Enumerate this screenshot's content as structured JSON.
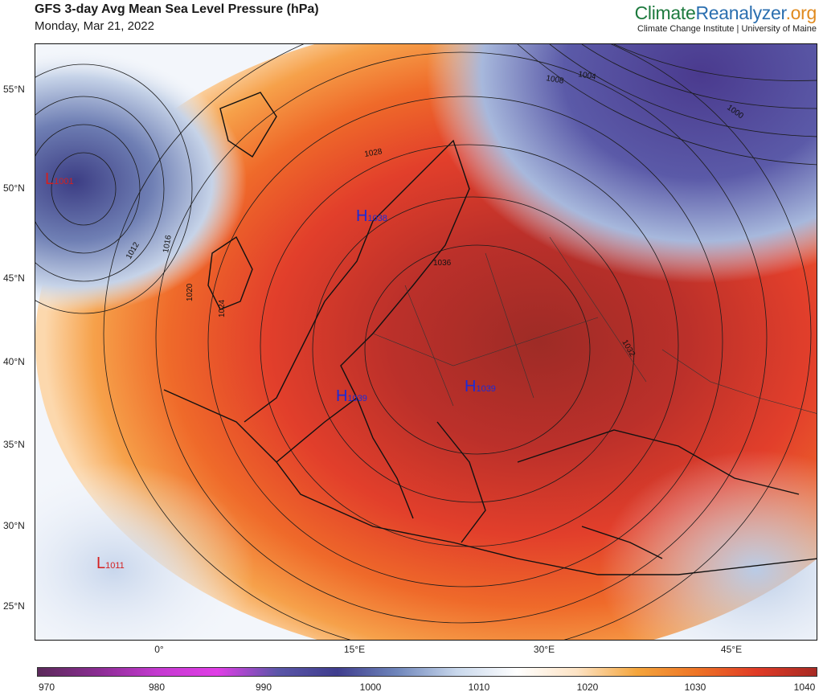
{
  "header": {
    "title": "GFS 3-day Avg Mean Sea Level Pressure (hPa)",
    "date": "Monday, Mar 21, 2022",
    "brand_part1": "Climate",
    "brand_part2": "Reanalyzer",
    "brand_part3": ".org",
    "institution": "Climate Change Institute | University of Maine"
  },
  "axes": {
    "lat_labels": [
      "55°N",
      "50°N",
      "45°N",
      "40°N",
      "35°N",
      "30°N",
      "25°N"
    ],
    "lon_labels": [
      "0°",
      "15°E",
      "30°E",
      "45°E"
    ]
  },
  "pressure_centers": [
    {
      "type": "L",
      "value": "1001",
      "color": "#d42020"
    },
    {
      "type": "H",
      "value": "1038",
      "color": "#1a2bd8"
    },
    {
      "type": "H",
      "value": "1039",
      "color": "#1a2bd8"
    },
    {
      "type": "H",
      "value": "1039",
      "color": "#1a2bd8"
    },
    {
      "type": "L",
      "value": "1011",
      "color": "#d42020"
    }
  ],
  "isobar_labels": [
    "1012",
    "1016",
    "1020",
    "1024",
    "1028",
    "1032",
    "1036",
    "1008",
    "1004",
    "1000"
  ],
  "colorbar": {
    "ticks": [
      "970",
      "980",
      "990",
      "1000",
      "1010",
      "1020",
      "1030",
      "1040"
    ],
    "colors": [
      "#5b2a5a",
      "#8a2c92",
      "#c43ad0",
      "#e03ee6",
      "#5b56a8",
      "#3f3d8e",
      "#6f86bb",
      "#c9d8ec",
      "#ffffff",
      "#fde3c4",
      "#f4a53c",
      "#ee7426",
      "#e03b26",
      "#a72a24"
    ]
  },
  "colors": {
    "high": "#b2342a",
    "low": "#3f3f8e",
    "land_border": "#111111"
  }
}
